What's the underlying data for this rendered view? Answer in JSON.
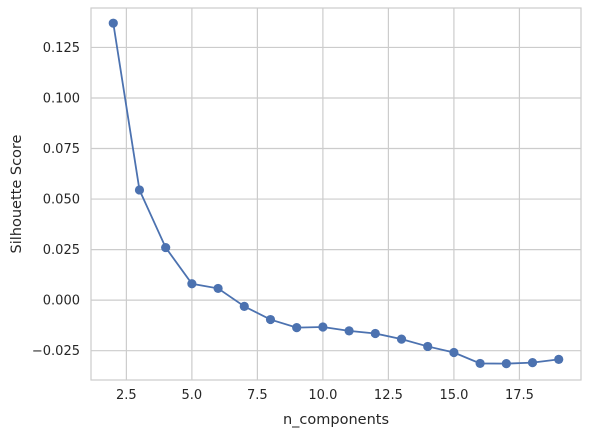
{
  "chart_data": {
    "type": "line",
    "xlabel": "n_components",
    "ylabel": "Silhouette Score",
    "xlim": [
      1.15,
      19.85
    ],
    "ylim": [
      -0.0395,
      0.1445
    ],
    "grid": true,
    "x_ticks": [
      2.5,
      5.0,
      7.5,
      10.0,
      12.5,
      15.0,
      17.5
    ],
    "x_tick_labels": [
      "2.5",
      "5.0",
      "7.5",
      "10.0",
      "12.5",
      "15.0",
      "17.5"
    ],
    "y_ticks": [
      -0.025,
      0.0,
      0.025,
      0.05,
      0.075,
      0.1,
      0.125
    ],
    "y_tick_labels": [
      "−0.025",
      "0.000",
      "0.025",
      "0.050",
      "0.075",
      "0.100",
      "0.125"
    ],
    "series": [
      {
        "color": "#4c72b0",
        "marker": "circle",
        "x": [
          2,
          3,
          4,
          5,
          6,
          7,
          8,
          9,
          10,
          11,
          12,
          13,
          14,
          15,
          16,
          17,
          18,
          19
        ],
        "y": [
          0.137,
          0.0545,
          0.026,
          0.0081,
          0.0058,
          -0.0031,
          -0.0096,
          -0.0136,
          -0.0133,
          -0.0152,
          -0.0165,
          -0.0193,
          -0.0229,
          -0.0259,
          -0.0313,
          -0.0314,
          -0.0309,
          -0.0293
        ]
      }
    ]
  }
}
